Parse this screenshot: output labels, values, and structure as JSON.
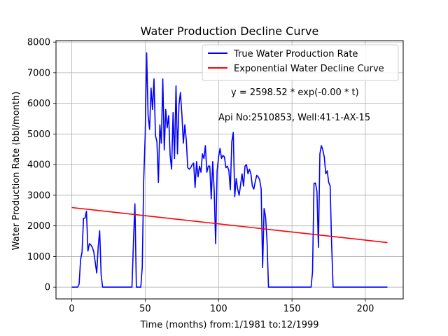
{
  "chart_data": {
    "type": "line",
    "title": "Water Production Decline Curve",
    "xlabel": "Time (months) from:1/1981 to:12/1999",
    "ylabel": "Water Production Rate (bbl/month)",
    "xlim": [
      -10.75,
      225.75
    ],
    "ylim": [
      -384,
      8049
    ],
    "x_ticks": [
      0,
      50,
      100,
      150,
      200
    ],
    "y_ticks": [
      0,
      1000,
      2000,
      3000,
      4000,
      5000,
      6000,
      7000,
      8000
    ],
    "grid": true,
    "legend_position": "top-right",
    "annotations": [
      "y = 2598.52 * exp(-0.00 * t)",
      "Api No:2510853, Well:41-1-AX-15"
    ],
    "series": [
      {
        "name": "True Water Production Rate",
        "color": "#0000ff",
        "points": [
          [
            0,
            0
          ],
          [
            1,
            0
          ],
          [
            2,
            0
          ],
          [
            3,
            0
          ],
          [
            4,
            0
          ],
          [
            5,
            100
          ],
          [
            6,
            900
          ],
          [
            7,
            1150
          ],
          [
            8,
            2250
          ],
          [
            9,
            2250
          ],
          [
            10,
            2480
          ],
          [
            11,
            1180
          ],
          [
            12,
            1420
          ],
          [
            13,
            1380
          ],
          [
            14,
            1300
          ],
          [
            15,
            1150
          ],
          [
            16,
            800
          ],
          [
            17,
            460
          ],
          [
            18,
            1320
          ],
          [
            19,
            1840
          ],
          [
            20,
            400
          ],
          [
            21,
            0
          ],
          [
            22,
            0
          ],
          [
            23,
            0
          ],
          [
            24,
            0
          ],
          [
            25,
            0
          ],
          [
            26,
            0
          ],
          [
            27,
            0
          ],
          [
            28,
            0
          ],
          [
            29,
            0
          ],
          [
            30,
            0
          ],
          [
            31,
            0
          ],
          [
            32,
            0
          ],
          [
            33,
            0
          ],
          [
            34,
            0
          ],
          [
            35,
            0
          ],
          [
            36,
            0
          ],
          [
            37,
            0
          ],
          [
            38,
            0
          ],
          [
            39,
            0
          ],
          [
            40,
            0
          ],
          [
            41,
            0
          ],
          [
            42,
            1450
          ],
          [
            43,
            2720
          ],
          [
            44,
            0
          ],
          [
            45,
            0
          ],
          [
            46,
            0
          ],
          [
            47,
            0
          ],
          [
            48,
            650
          ],
          [
            49,
            3500
          ],
          [
            50,
            4950
          ],
          [
            51,
            7650
          ],
          [
            52,
            5600
          ],
          [
            53,
            5150
          ],
          [
            54,
            6500
          ],
          [
            55,
            5800
          ],
          [
            56,
            6800
          ],
          [
            57,
            4950
          ],
          [
            58,
            4750
          ],
          [
            59,
            3420
          ],
          [
            60,
            5300
          ],
          [
            61,
            4700
          ],
          [
            62,
            6800
          ],
          [
            63,
            4480
          ],
          [
            64,
            5800
          ],
          [
            65,
            5200
          ],
          [
            66,
            5600
          ],
          [
            67,
            4300
          ],
          [
            68,
            3850
          ],
          [
            69,
            5700
          ],
          [
            70,
            4200
          ],
          [
            71,
            6570
          ],
          [
            72,
            4350
          ],
          [
            73,
            5950
          ],
          [
            74,
            6350
          ],
          [
            75,
            5650
          ],
          [
            76,
            4700
          ],
          [
            77,
            5300
          ],
          [
            78,
            4800
          ],
          [
            79,
            3900
          ],
          [
            80,
            3850
          ],
          [
            81,
            3900
          ],
          [
            82,
            4000
          ],
          [
            83,
            4050
          ],
          [
            84,
            3250
          ],
          [
            85,
            4100
          ],
          [
            86,
            3600
          ],
          [
            87,
            3950
          ],
          [
            88,
            3750
          ],
          [
            89,
            4350
          ],
          [
            90,
            4200
          ],
          [
            91,
            4620
          ],
          [
            92,
            3750
          ],
          [
            93,
            3950
          ],
          [
            94,
            3950
          ],
          [
            95,
            2880
          ],
          [
            96,
            4100
          ],
          [
            97,
            3150
          ],
          [
            98,
            1420
          ],
          [
            99,
            3800
          ],
          [
            100,
            4250
          ],
          [
            101,
            4530
          ],
          [
            102,
            4200
          ],
          [
            103,
            4300
          ],
          [
            104,
            4250
          ],
          [
            105,
            3900
          ],
          [
            106,
            3950
          ],
          [
            107,
            3800
          ],
          [
            108,
            3180
          ],
          [
            109,
            4750
          ],
          [
            110,
            5050
          ],
          [
            111,
            2950
          ],
          [
            112,
            3550
          ],
          [
            113,
            3200
          ],
          [
            114,
            3000
          ],
          [
            115,
            3350
          ],
          [
            116,
            3700
          ],
          [
            117,
            3300
          ],
          [
            118,
            3950
          ],
          [
            119,
            4000
          ],
          [
            120,
            3700
          ],
          [
            121,
            3850
          ],
          [
            122,
            3700
          ],
          [
            123,
            3300
          ],
          [
            124,
            3200
          ],
          [
            125,
            3450
          ],
          [
            126,
            3650
          ],
          [
            127,
            3600
          ],
          [
            128,
            3500
          ],
          [
            129,
            3200
          ],
          [
            130,
            640
          ],
          [
            131,
            2570
          ],
          [
            132,
            2300
          ],
          [
            133,
            1500
          ],
          [
            134,
            0
          ],
          [
            135,
            0
          ],
          [
            136,
            0
          ],
          [
            137,
            0
          ],
          [
            138,
            0
          ],
          [
            139,
            0
          ],
          [
            140,
            0
          ],
          [
            141,
            0
          ],
          [
            142,
            0
          ],
          [
            143,
            0
          ],
          [
            144,
            0
          ],
          [
            145,
            0
          ],
          [
            146,
            0
          ],
          [
            147,
            0
          ],
          [
            148,
            0
          ],
          [
            149,
            0
          ],
          [
            150,
            0
          ],
          [
            151,
            0
          ],
          [
            152,
            0
          ],
          [
            153,
            0
          ],
          [
            154,
            0
          ],
          [
            155,
            0
          ],
          [
            156,
            0
          ],
          [
            157,
            0
          ],
          [
            158,
            0
          ],
          [
            159,
            0
          ],
          [
            160,
            0
          ],
          [
            161,
            0
          ],
          [
            162,
            0
          ],
          [
            163,
            0
          ],
          [
            164,
            500
          ],
          [
            165,
            3380
          ],
          [
            166,
            3400
          ],
          [
            167,
            3120
          ],
          [
            168,
            1300
          ],
          [
            169,
            4350
          ],
          [
            170,
            4620
          ],
          [
            171,
            4480
          ],
          [
            172,
            4250
          ],
          [
            173,
            3700
          ],
          [
            174,
            3800
          ],
          [
            175,
            3420
          ],
          [
            176,
            3300
          ],
          [
            177,
            1400
          ],
          [
            178,
            0
          ],
          [
            179,
            0
          ],
          [
            180,
            0
          ],
          [
            181,
            0
          ],
          [
            182,
            0
          ],
          [
            183,
            0
          ],
          [
            184,
            0
          ],
          [
            185,
            0
          ],
          [
            186,
            0
          ],
          [
            187,
            0
          ],
          [
            188,
            0
          ],
          [
            189,
            0
          ],
          [
            190,
            0
          ],
          [
            191,
            0
          ],
          [
            192,
            0
          ],
          [
            193,
            0
          ],
          [
            194,
            0
          ],
          [
            195,
            0
          ],
          [
            196,
            0
          ],
          [
            197,
            0
          ],
          [
            198,
            0
          ],
          [
            199,
            0
          ],
          [
            200,
            0
          ],
          [
            201,
            0
          ],
          [
            202,
            0
          ],
          [
            203,
            0
          ],
          [
            204,
            0
          ],
          [
            205,
            0
          ],
          [
            206,
            0
          ],
          [
            207,
            0
          ],
          [
            208,
            0
          ],
          [
            209,
            0
          ],
          [
            210,
            0
          ],
          [
            211,
            0
          ],
          [
            212,
            0
          ],
          [
            213,
            0
          ],
          [
            214,
            0
          ],
          [
            215,
            0
          ]
        ]
      },
      {
        "name": "Exponential Water Decline Curve",
        "color": "#ff0000",
        "points": [
          [
            0,
            2598.52
          ],
          [
            215,
            1455
          ]
        ]
      }
    ]
  }
}
